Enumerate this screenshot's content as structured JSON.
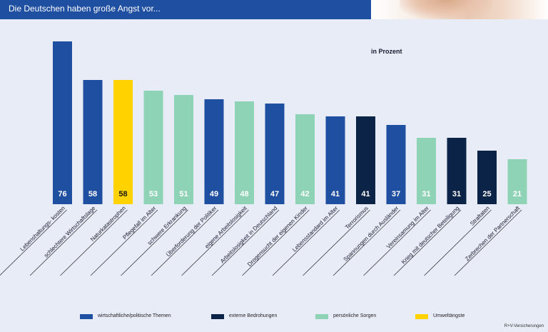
{
  "header": {
    "title": "Die Deutschen haben große Angst vor..."
  },
  "unit": "in Prozent",
  "colors": {
    "wirtschaft": "#1f4fa0",
    "extern": "#0b2346",
    "persoenlich": "#8fd3b6",
    "umwelt": "#ffd200",
    "header": "#1f4fa0",
    "panel": "#e8ecf7"
  },
  "legend": [
    {
      "label": "wirtschaftliche/politische Themen",
      "group": "wirtschaft"
    },
    {
      "label": "externe Bedrohungen",
      "group": "extern"
    },
    {
      "label": "persönliche Sorgen",
      "group": "persoenlich"
    },
    {
      "label": "Umweltängste",
      "group": "umwelt"
    }
  ],
  "source": "R+V-Versicherungen",
  "chart_data": {
    "type": "bar",
    "ylabel": "in Prozent",
    "ylim": [
      0,
      85
    ],
    "grid": false,
    "legend_position": "bottom",
    "categories": [
      "Lebenshaltungs- kosten",
      "schlechtere Wirtschaftslage",
      "Naturkatastrophen",
      "Pflegefall im Alter",
      "schwere Erkrankung",
      "Überforderung der Politiker",
      "eigene Arbeitslosigkeit",
      "Arbeitslosigkeit in Deutschland",
      "Drogensucht der eigenen Kinder",
      "Lebensstandard im Alter",
      "Terrorismus",
      "Spannungen durch Ausländer",
      "Vereinsamung im Alter",
      "Krieg mit deutscher Beteiligung",
      "Straftaten",
      "Zerbrechen der Partnerschaft"
    ],
    "values": [
      76,
      58,
      58,
      53,
      51,
      49,
      48,
      47,
      42,
      41,
      41,
      37,
      31,
      31,
      25,
      21
    ],
    "groups": [
      "wirtschaft",
      "wirtschaft",
      "umwelt",
      "persoenlich",
      "persoenlich",
      "wirtschaft",
      "persoenlich",
      "wirtschaft",
      "persoenlich",
      "wirtschaft",
      "extern",
      "wirtschaft",
      "persoenlich",
      "extern",
      "extern",
      "persoenlich"
    ]
  }
}
